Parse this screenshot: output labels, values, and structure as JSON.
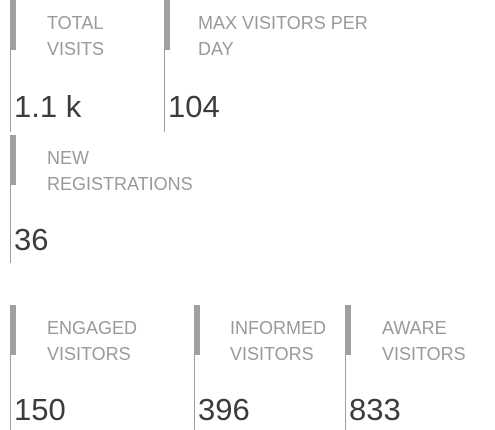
{
  "widgets": [
    {
      "label": "TOTAL VISITS",
      "value": "1.1 k"
    },
    {
      "label": "MAX VISITORS PER DAY",
      "value": 104
    },
    {
      "label": "NEW REGISTRATIONS",
      "value": 36
    },
    {
      "label": "ENGAGED VISITORS",
      "value": 150
    },
    {
      "label": "INFORMED VISITORS",
      "value": 396
    },
    {
      "label": "AWARE VISITORS",
      "value": 833
    }
  ]
}
